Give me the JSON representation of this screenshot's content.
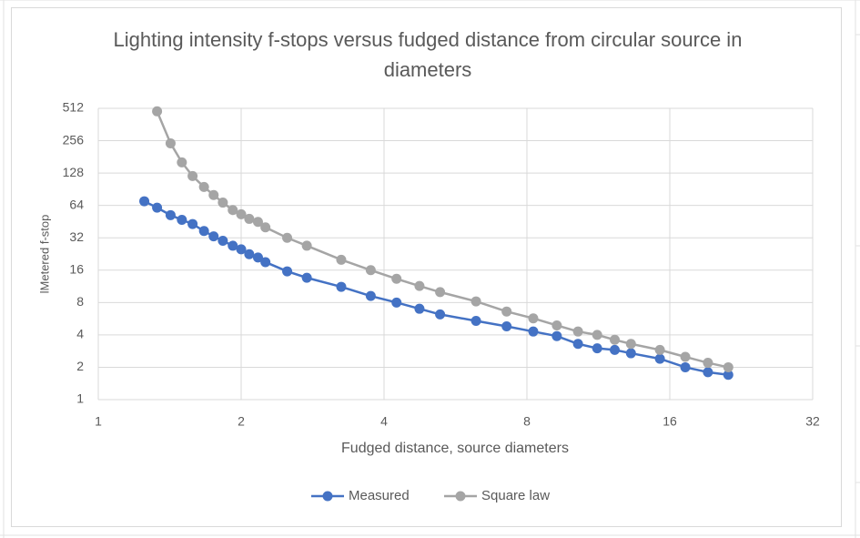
{
  "chart_data": {
    "type": "line",
    "title": "Lighting intensity f-stops versus fudged distance from circular source in diameters",
    "x_label": "Fudged distance, source diameters",
    "y_label": "lMetered f-stop",
    "x": [
      1.25,
      1.33,
      1.42,
      1.5,
      1.58,
      1.67,
      1.75,
      1.83,
      1.92,
      2,
      2.08,
      2.17,
      2.25,
      2.5,
      2.75,
      3.25,
      3.75,
      4.25,
      4.75,
      5.25,
      6.25,
      7.25,
      8.25,
      9.25,
      10.25,
      11.25,
      12.25,
      13.25,
      15.25,
      17.25,
      19.25,
      21.25
    ],
    "series": [
      {
        "name": "Measured",
        "color": "#4472c4",
        "values": [
          70,
          61,
          52,
          47,
          43,
          37,
          33,
          30,
          27,
          25,
          22.5,
          21,
          19,
          15.6,
          13.6,
          11.2,
          9.2,
          8,
          7,
          6.2,
          5.4,
          4.8,
          4.3,
          3.9,
          3.3,
          3,
          2.9,
          2.7,
          2.4,
          2,
          1.8,
          1.7
        ]
      },
      {
        "name": "Square law",
        "color": "#a5a5a5",
        "values": [
          null,
          480,
          242,
          161,
          120,
          95,
          80,
          68,
          58,
          53,
          48,
          45,
          40,
          32,
          27,
          20,
          16,
          13.3,
          11.4,
          10,
          8.2,
          6.6,
          5.7,
          4.9,
          4.3,
          4,
          3.6,
          3.3,
          2.9,
          2.5,
          2.2,
          2
        ]
      }
    ],
    "xscale": "log2",
    "yscale": "log2",
    "xlim": [
      1,
      32
    ],
    "xticks": [
      1,
      2,
      4,
      8,
      16,
      32
    ],
    "ylim": [
      1,
      512
    ],
    "yticks": [
      1,
      2,
      4,
      8,
      16,
      32,
      64,
      128,
      256,
      512
    ],
    "grid": true,
    "legend": "bottom"
  }
}
